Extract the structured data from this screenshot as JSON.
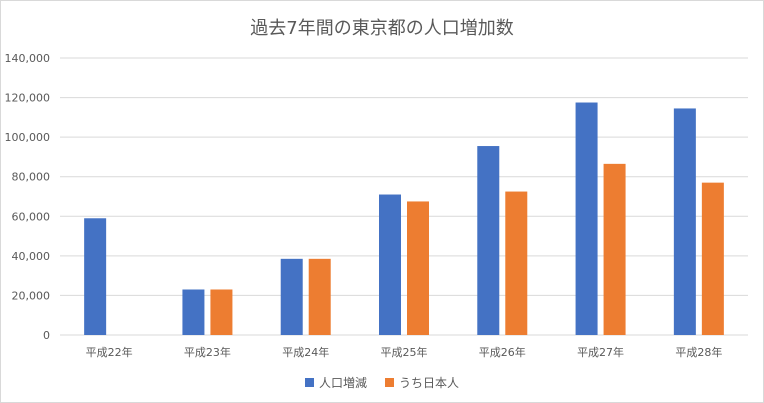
{
  "chart_data": {
    "type": "bar",
    "title": "過去7年間の東京都の人口増加数",
    "categories": [
      "平成22年",
      "平成23年",
      "平成24年",
      "平成25年",
      "平成26年",
      "平成27年",
      "平成28年"
    ],
    "series": [
      {
        "name": "人口増減",
        "color": "#4472c4",
        "values": [
          59000,
          23000,
          38500,
          71000,
          95500,
          117500,
          114500
        ]
      },
      {
        "name": "うち日本人",
        "color": "#ed7d31",
        "values": [
          0,
          23000,
          38500,
          67500,
          72500,
          86500,
          77000
        ]
      }
    ],
    "y_ticks": [
      "0",
      "20,000",
      "40,000",
      "60,000",
      "80,000",
      "100,000",
      "120,000",
      "140,000"
    ],
    "ylim": [
      0,
      140000
    ],
    "grid": true,
    "legend_position": "bottom"
  }
}
